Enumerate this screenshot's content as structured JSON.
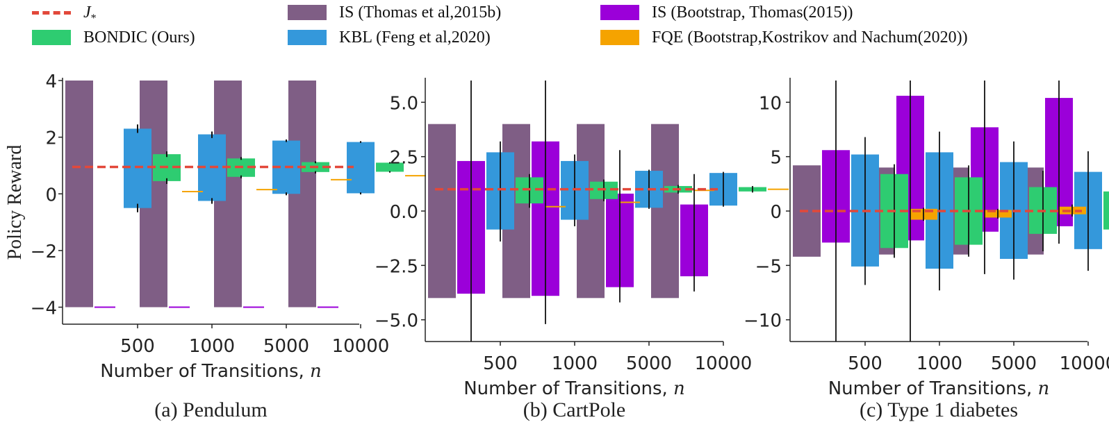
{
  "colors": {
    "j_star": "#e2483a",
    "is_thomas": "#7f5e85",
    "bondic": "#2ecc71",
    "kbl": "#3498db",
    "is_bootstrap": "#9b00d9",
    "fqe": "#f5a300"
  },
  "legend": {
    "j_star": "J",
    "j_star_sub": "*",
    "is_thomas": "IS (Thomas et al,2015b)",
    "kbl": "KBL (Feng et al,2020)",
    "bondic": "BONDIC (Ours)",
    "is_bootstrap": "IS (Bootstrap, Thomas(2015))",
    "fqe": "FQE (Bootstrap,Kostrikov and Nachum(2020))"
  },
  "chart_data": [
    {
      "type": "bar",
      "panel": "Pendulum",
      "caption": "(a) Pendulum",
      "ylabel": "Policy Reward",
      "xlabel": "Number of Transitions, ",
      "xlabel_var": "n",
      "categories": [
        "500",
        "1000",
        "5000",
        "10000"
      ],
      "ylim": [
        -4.6,
        4.0
      ],
      "yticks": [
        4,
        2,
        0,
        -2,
        -4
      ],
      "ytick_labels": [
        "4",
        "2",
        "0",
        "−2",
        "−4"
      ],
      "j_star": 0.95,
      "series": [
        {
          "name": "IS (Thomas et al,2015b)",
          "key": "is_thomas",
          "low": [
            -4,
            -4,
            -4,
            -4
          ],
          "high": [
            4,
            4,
            4,
            4
          ],
          "err": [
            null,
            null,
            null,
            null
          ]
        },
        {
          "name": "IS (Bootstrap, Thomas(2015))",
          "key": "is_bootstrap",
          "low": [
            -4,
            -4,
            -4,
            -4
          ],
          "high": [
            -4,
            -4,
            -4,
            -4
          ],
          "err": [
            null,
            null,
            null,
            null
          ]
        },
        {
          "name": "KBL (Feng et al,2020)",
          "key": "kbl",
          "low": [
            -0.5,
            -0.25,
            0.0,
            0.02
          ],
          "high": [
            2.3,
            2.1,
            1.88,
            1.83
          ],
          "err": [
            [
              -0.65,
              -0.35
            ],
            [
              2.15,
              2.45
            ],
            [
              -0.35,
              -0.15
            ],
            [
              1.97,
              2.2
            ],
            [
              -0.05,
              0.05
            ],
            [
              1.83,
              1.92
            ],
            [
              -0.02,
              0.05
            ],
            [
              1.8,
              1.86
            ]
          ]
        },
        {
          "name": "BONDIC (Ours)",
          "key": "bondic",
          "low": [
            0.45,
            0.6,
            0.77,
            0.78
          ],
          "high": [
            1.4,
            1.25,
            1.12,
            1.1
          ],
          "err": [
            [
              0.35,
              0.55
            ],
            [
              1.3,
              1.5
            ],
            [
              0.55,
              0.65
            ],
            [
              1.2,
              1.3
            ],
            [
              0.72,
              0.8
            ],
            [
              1.08,
              1.15
            ],
            [
              0.75,
              0.8
            ],
            [
              1.07,
              1.12
            ]
          ]
        },
        {
          "name": "FQE (Bootstrap,Kostrikov and Nachum(2020))",
          "key": "fqe",
          "low": [
            0.08,
            0.15,
            0.5,
            0.64
          ],
          "high": [
            0.08,
            0.15,
            0.5,
            0.64
          ],
          "err": [
            null,
            null,
            null,
            null
          ]
        }
      ]
    },
    {
      "type": "bar",
      "panel": "CartPole",
      "caption": "(b) CartPole",
      "xlabel": "Number of Transitions, ",
      "xlabel_var": "n",
      "categories": [
        "500",
        "1000",
        "5000",
        "10000"
      ],
      "ylim": [
        -6.0,
        6.0
      ],
      "yticks": [
        5.0,
        2.5,
        0.0,
        -2.5,
        -5.0
      ],
      "ytick_labels": [
        "5.0",
        "2.5",
        "0.0",
        "−2.5",
        "−5.0"
      ],
      "j_star": 1.0,
      "series": [
        {
          "name": "IS (Thomas et al,2015b)",
          "key": "is_thomas",
          "low": [
            -4,
            -4,
            -4,
            -4
          ],
          "high": [
            4,
            4,
            4,
            4
          ],
          "err": [
            null,
            null,
            null,
            null
          ]
        },
        {
          "name": "IS (Bootstrap, Thomas(2015))",
          "key": "is_bootstrap",
          "low": [
            -3.8,
            -3.9,
            -3.5,
            -3.0
          ],
          "high": [
            2.3,
            3.2,
            0.8,
            0.3
          ],
          "err": [
            [
              -6.0,
              6.0
            ],
            [
              -5.2,
              6.0
            ],
            [
              -4.2,
              2.8
            ],
            [
              -3.7,
              1.7
            ]
          ]
        },
        {
          "name": "KBL (Feng et al,2020)",
          "key": "kbl",
          "low": [
            -0.85,
            -0.4,
            0.15,
            0.25
          ],
          "high": [
            2.7,
            2.3,
            1.85,
            1.75
          ],
          "err": [
            [
              -1.4,
              3.2
            ],
            [
              -0.7,
              2.6
            ],
            [
              0.1,
              1.9
            ],
            [
              0.2,
              1.8
            ]
          ]
        },
        {
          "name": "BONDIC (Ours)",
          "key": "bondic",
          "low": [
            0.35,
            0.55,
            0.85,
            0.9
          ],
          "high": [
            1.55,
            1.35,
            1.15,
            1.1
          ],
          "err": [
            [
              0.15,
              1.7
            ],
            [
              0.45,
              1.45
            ],
            [
              0.8,
              1.2
            ],
            [
              0.85,
              1.15
            ]
          ]
        },
        {
          "name": "FQE (Bootstrap,Kostrikov and Nachum(2020))",
          "key": "fqe",
          "low": [
            0.2,
            0.4,
            0.95,
            1.0
          ],
          "high": [
            0.2,
            0.4,
            0.95,
            1.0
          ],
          "err": [
            null,
            null,
            null,
            null
          ]
        }
      ]
    },
    {
      "type": "bar",
      "panel": "Type 1 diabetes",
      "caption": "(c) Type 1 diabetes",
      "xlabel": "Number of Transitions, ",
      "xlabel_var": "n",
      "categories": [
        "500",
        "1000",
        "5000",
        "10000"
      ],
      "ylim": [
        -12.0,
        12.0
      ],
      "yticks": [
        10,
        5,
        0,
        -5,
        -10
      ],
      "ytick_labels": [
        "10",
        "5",
        "0",
        "−5",
        "−10"
      ],
      "j_star": 0.0,
      "series": [
        {
          "name": "IS (Thomas et al,2015b)",
          "key": "is_thomas",
          "low": [
            -4.2,
            -4.0,
            -4.0,
            -4.0
          ],
          "high": [
            4.2,
            4.0,
            4.0,
            4.0
          ],
          "err": [
            null,
            null,
            null,
            null
          ]
        },
        {
          "name": "IS (Bootstrap, Thomas(2015))",
          "key": "is_bootstrap",
          "low": [
            -2.9,
            -2.7,
            -1.9,
            -1.4
          ],
          "high": [
            5.6,
            10.6,
            7.7,
            10.4
          ],
          "err": [
            [
              -12.0,
              12.0
            ],
            [
              -12.0,
              12.0
            ],
            [
              -5.8,
              12.0
            ],
            [
              -3.0,
              12.0
            ]
          ]
        },
        {
          "name": "KBL (Feng et al,2020)",
          "key": "kbl",
          "low": [
            -5.1,
            -5.3,
            -4.4,
            -3.5
          ],
          "high": [
            5.2,
            5.4,
            4.5,
            3.6
          ],
          "err": [
            [
              -6.8,
              6.8
            ],
            [
              -7.3,
              7.3
            ],
            [
              -6.3,
              6.4
            ],
            [
              -5.5,
              5.5
            ]
          ]
        },
        {
          "name": "BONDIC (Ours)",
          "key": "bondic",
          "low": [
            -3.4,
            -3.1,
            -2.1,
            -1.7
          ],
          "high": [
            3.4,
            3.1,
            2.2,
            1.8
          ],
          "err": [
            [
              -4.3,
              4.3
            ],
            [
              -4.2,
              4.2
            ],
            [
              -3.7,
              3.7
            ],
            [
              -3.0,
              3.1
            ]
          ]
        },
        {
          "name": "FQE (Bootstrap,Kostrikov and Nachum(2020))",
          "key": "fqe",
          "low": [
            -0.8,
            -0.6,
            -0.3,
            -0.3
          ],
          "high": [
            0.2,
            0.1,
            0.4,
            0.4
          ],
          "err": [
            [
              -0.9,
              0.3
            ],
            [
              -0.7,
              0.2
            ],
            [
              -0.5,
              0.6
            ],
            [
              -0.4,
              0.6
            ]
          ]
        }
      ]
    }
  ]
}
